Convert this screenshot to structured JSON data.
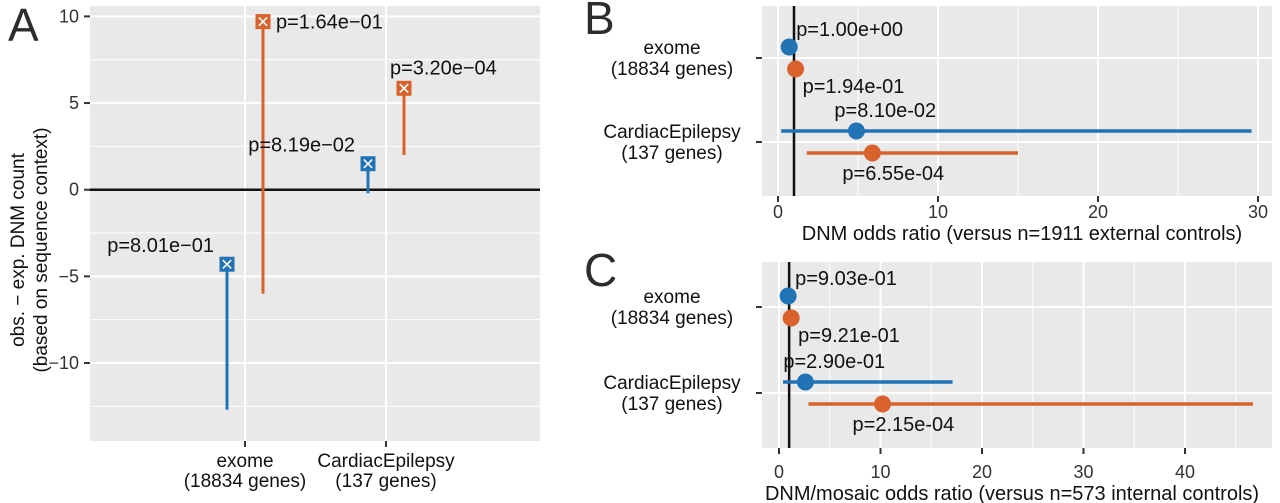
{
  "figure": {
    "bg": "#ffffff",
    "panel_bg": "#e9e9e9",
    "grid_color": "#ffffff",
    "tick_text_color": "#333333",
    "text_color": "#111111",
    "refline_color": "#111111",
    "series_colors": {
      "blue": "#2173b5",
      "orange": "#d9622c"
    }
  },
  "chart_data": [
    {
      "id": "A",
      "panel_label": "A",
      "type": "lollipop-vertical",
      "ylabel_lines": [
        "obs. − exp. DNM count",
        "(based on sequence context)"
      ],
      "categories": [
        [
          "exome",
          "(18834 genes)"
        ],
        [
          "CardiacEpilepsy",
          "(137 genes)"
        ]
      ],
      "yticks": [
        10,
        5,
        0,
        -5,
        -10
      ],
      "yminor": [
        7.5,
        2.5,
        -2.5,
        -7.5,
        -12.5
      ],
      "ylim": [
        -14.5,
        10.6
      ],
      "refline_y": 0,
      "grid": true,
      "points": [
        {
          "category": 0,
          "series": "blue",
          "value": -4.3,
          "stem_to": -12.7,
          "p": "p=8.01e−01",
          "label_placement": "left"
        },
        {
          "category": 0,
          "series": "orange",
          "value": 9.7,
          "stem_to": -6.0,
          "p": "p=1.64e−01",
          "label_placement": "right"
        },
        {
          "category": 1,
          "series": "blue",
          "value": 1.5,
          "stem_to": -0.2,
          "p": "p=8.19e−02",
          "label_placement": "left"
        },
        {
          "category": 1,
          "series": "orange",
          "value": 5.85,
          "stem_to": 2.0,
          "p": "p=3.20e−04",
          "label_placement": "above"
        }
      ]
    },
    {
      "id": "B",
      "panel_label": "B",
      "type": "pointrange-horizontal",
      "xlabel": "DNM odds ratio (versus n=1911 external controls)",
      "categories": [
        [
          "exome",
          "(18834 genes)"
        ],
        [
          "CardiacEpilepsy",
          "(137 genes)"
        ]
      ],
      "xticks": [
        0,
        10,
        20,
        30
      ],
      "xminor": [
        5,
        15,
        25
      ],
      "xlim": [
        -1.1,
        30.8
      ],
      "refline_x": 1,
      "grid": true,
      "points": [
        {
          "category": 0,
          "series": "blue",
          "value": 0.7,
          "ci": null,
          "p": "p=1.00e+00",
          "label_placement": "above-right"
        },
        {
          "category": 0,
          "series": "orange",
          "value": 1.1,
          "ci": null,
          "p": "p=1.94e-01",
          "label_placement": "below-right"
        },
        {
          "category": 1,
          "series": "blue",
          "value": 4.9,
          "ci": [
            0.2,
            29.6
          ],
          "p": "p=8.10e-02",
          "label_placement": "above"
        },
        {
          "category": 1,
          "series": "orange",
          "value": 5.9,
          "ci": [
            1.8,
            15.0
          ],
          "p": "p=6.55e-04",
          "label_placement": "below"
        }
      ]
    },
    {
      "id": "C",
      "panel_label": "C",
      "type": "pointrange-horizontal",
      "xlabel": "DNM/mosaic odds ratio (versus n=573 internal controls)",
      "categories": [
        [
          "exome",
          "(18834 genes)"
        ],
        [
          "CardiacEpilepsy",
          "(137 genes)"
        ]
      ],
      "xticks": [
        0,
        10,
        20,
        30,
        40
      ],
      "xminor": [
        5,
        15,
        25,
        35,
        45
      ],
      "xlim": [
        -1.7,
        48.6
      ],
      "refline_x": 1,
      "grid": true,
      "points": [
        {
          "category": 0,
          "series": "blue",
          "value": 0.9,
          "ci": null,
          "p": "p=9.03e-01",
          "label_placement": "above-right"
        },
        {
          "category": 0,
          "series": "orange",
          "value": 1.2,
          "ci": null,
          "p": "p=9.21e-01",
          "label_placement": "below-right"
        },
        {
          "category": 1,
          "series": "blue",
          "value": 2.6,
          "ci": [
            0.4,
            17.1
          ],
          "p": "p=2.90e-01",
          "label_placement": "above"
        },
        {
          "category": 1,
          "series": "orange",
          "value": 10.2,
          "ci": [
            2.9,
            46.7
          ],
          "p": "p=2.15e-04",
          "label_placement": "below"
        }
      ]
    }
  ]
}
